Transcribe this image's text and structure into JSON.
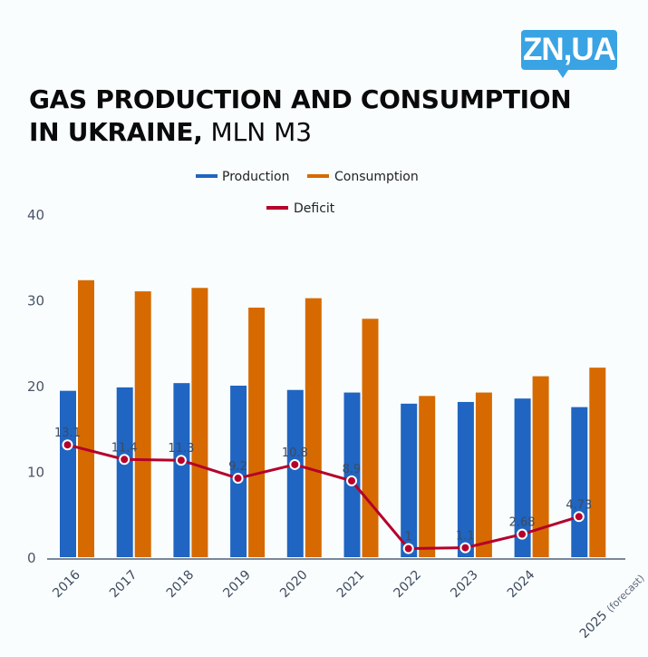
{
  "brand": {
    "logo_text": "ZN,UA",
    "logo_color": "#3aa3e3"
  },
  "header": {
    "title_bold_line1": "GAS PRODUCTION AND CONSUMPTION",
    "title_bold_line2": "IN UKRAINE,",
    "title_unit": "MLN M3"
  },
  "colors": {
    "production": "#1f65c1",
    "consumption": "#d66a00",
    "deficit": "#b5002a",
    "axis": "#7b8797"
  },
  "chart_data": {
    "type": "bar",
    "title": "GAS PRODUCTION AND CONSUMPTION IN UKRAINE, MLN M3",
    "xlabel": "",
    "ylabel": "",
    "categories": [
      "2016",
      "2017",
      "2018",
      "2019",
      "2020",
      "2021",
      "2022",
      "2023",
      "2024",
      "2025"
    ],
    "category_notes": [
      "",
      "",
      "",
      "",
      "",
      "",
      "",
      "",
      "",
      "(forecast)"
    ],
    "ylim": [
      0,
      40
    ],
    "yticks": [
      0,
      10,
      20,
      30,
      40
    ],
    "grid": false,
    "legend_position": "top-center",
    "series": [
      {
        "name": "Production",
        "type": "bar",
        "values": [
          19.4,
          19.8,
          20.3,
          20.0,
          19.5,
          19.2,
          17.9,
          18.1,
          18.5,
          17.5
        ]
      },
      {
        "name": "Consumption",
        "type": "bar",
        "values": [
          32.3,
          31.0,
          31.4,
          29.1,
          30.2,
          27.8,
          18.8,
          19.2,
          21.1,
          22.1
        ]
      },
      {
        "name": "Deficit",
        "type": "line",
        "values": [
          13.1,
          11.4,
          11.3,
          9.2,
          10.8,
          8.9,
          1,
          1.1,
          2.68,
          4.73
        ],
        "labels": [
          "13.1",
          "11.4",
          "11.3",
          "9.2",
          "10.8",
          "8.9",
          "1",
          "1.1",
          "2.68",
          "4.73"
        ]
      }
    ]
  }
}
